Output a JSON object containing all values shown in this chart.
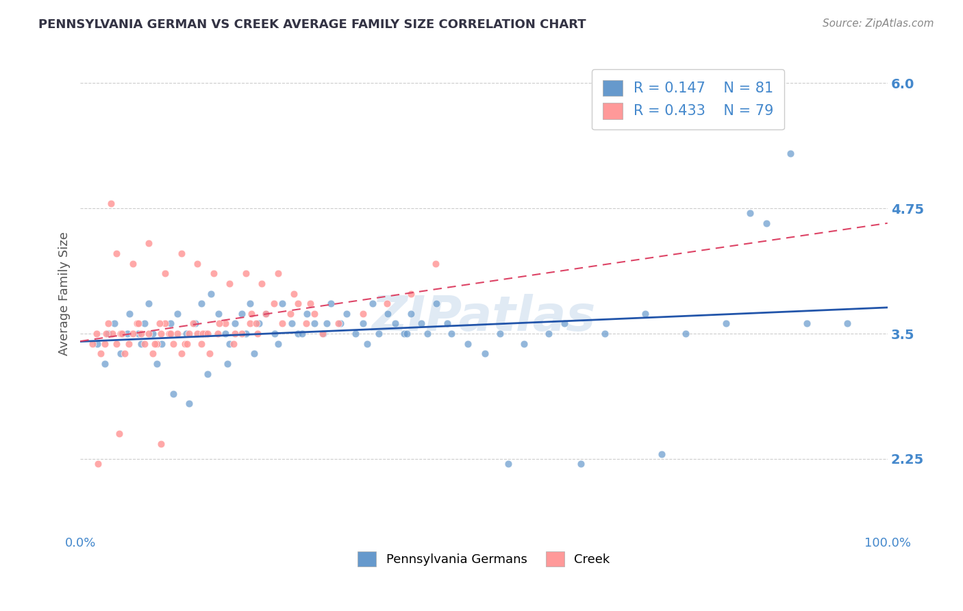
{
  "title": "PENNSYLVANIA GERMAN VS CREEK AVERAGE FAMILY SIZE CORRELATION CHART",
  "source_text": "Source: ZipAtlas.com",
  "xlabel": "",
  "ylabel": "Average Family Size",
  "xmin": 0.0,
  "xmax": 100.0,
  "ymin": 1.5,
  "ymax": 6.3,
  "yticks": [
    2.25,
    3.5,
    4.75,
    6.0
  ],
  "xticks": [
    0.0,
    100.0
  ],
  "xticklabels": [
    "0.0%",
    "100.0%"
  ],
  "blue_color": "#6699cc",
  "pink_color": "#ff9999",
  "blue_line_color": "#2255aa",
  "pink_line_color": "#dd4466",
  "grid_color": "#cccccc",
  "title_color": "#333333",
  "axis_label_color": "#4488cc",
  "watermark_color": "#ccddee",
  "legend_R1": "0.147",
  "legend_N1": "81",
  "legend_R2": "0.433",
  "legend_N2": "79",
  "blue_scatter_x": [
    2.1,
    3.5,
    4.2,
    5.8,
    6.1,
    7.2,
    8.0,
    8.5,
    9.0,
    10.1,
    11.2,
    12.0,
    13.1,
    14.2,
    15.0,
    15.5,
    16.2,
    17.1,
    18.0,
    18.5,
    19.2,
    20.0,
    20.5,
    21.0,
    22.1,
    23.0,
    24.1,
    25.0,
    26.2,
    27.0,
    28.1,
    29.0,
    30.1,
    31.0,
    32.2,
    33.0,
    34.1,
    35.0,
    36.2,
    37.0,
    38.1,
    39.0,
    40.1,
    41.0,
    42.2,
    43.0,
    44.1,
    46.0,
    48.0,
    50.1,
    52.0,
    55.0,
    58.0,
    60.0,
    65.0,
    70.0,
    75.0,
    80.0,
    85.0,
    90.0,
    3.0,
    5.0,
    7.5,
    9.5,
    11.5,
    13.5,
    15.8,
    18.2,
    21.5,
    24.5,
    27.5,
    30.5,
    35.5,
    40.5,
    45.5,
    53.0,
    62.0,
    72.0,
    83.0,
    88.0,
    95.0
  ],
  "blue_scatter_y": [
    3.4,
    3.5,
    3.6,
    3.5,
    3.7,
    3.5,
    3.6,
    3.8,
    3.5,
    3.4,
    3.6,
    3.7,
    3.5,
    3.6,
    3.8,
    3.5,
    3.9,
    3.7,
    3.5,
    3.4,
    3.6,
    3.7,
    3.5,
    3.8,
    3.6,
    3.7,
    3.5,
    3.8,
    3.6,
    3.5,
    3.7,
    3.6,
    3.5,
    3.8,
    3.6,
    3.7,
    3.5,
    3.6,
    3.8,
    3.5,
    3.7,
    3.6,
    3.5,
    3.7,
    3.6,
    3.5,
    3.8,
    3.5,
    3.4,
    3.3,
    3.5,
    3.4,
    3.5,
    3.6,
    3.5,
    3.7,
    3.5,
    3.6,
    4.6,
    3.6,
    3.2,
    3.3,
    3.4,
    3.2,
    2.9,
    2.8,
    3.1,
    3.2,
    3.3,
    3.4,
    3.5,
    3.6,
    3.4,
    3.5,
    3.6,
    2.2,
    2.2,
    2.3,
    4.7,
    5.3,
    3.6
  ],
  "pink_scatter_x": [
    1.5,
    2.0,
    2.5,
    3.0,
    3.5,
    4.0,
    4.5,
    5.0,
    5.5,
    6.0,
    6.5,
    7.0,
    7.5,
    8.0,
    8.5,
    9.0,
    9.5,
    10.0,
    10.5,
    11.0,
    11.5,
    12.0,
    12.5,
    13.0,
    13.5,
    14.0,
    14.5,
    15.0,
    15.5,
    16.0,
    17.0,
    18.0,
    19.0,
    20.0,
    21.0,
    22.0,
    23.0,
    24.0,
    25.0,
    26.0,
    27.0,
    28.0,
    29.0,
    30.0,
    32.0,
    35.0,
    38.0,
    41.0,
    44.0,
    3.2,
    5.2,
    7.2,
    9.2,
    11.2,
    13.2,
    15.2,
    17.2,
    19.2,
    21.2,
    4.5,
    6.5,
    8.5,
    10.5,
    12.5,
    14.5,
    16.5,
    18.5,
    20.5,
    22.5,
    24.5,
    26.5,
    28.5,
    3.8,
    9.8,
    15.8,
    21.8,
    2.2,
    4.8,
    10.0
  ],
  "pink_scatter_y": [
    3.4,
    3.5,
    3.3,
    3.4,
    3.6,
    3.5,
    3.4,
    3.5,
    3.3,
    3.4,
    3.5,
    3.6,
    3.5,
    3.4,
    3.5,
    3.3,
    3.4,
    3.5,
    3.6,
    3.5,
    3.4,
    3.5,
    3.3,
    3.4,
    3.5,
    3.6,
    3.5,
    3.4,
    3.5,
    3.3,
    3.5,
    3.6,
    3.4,
    3.5,
    3.6,
    3.5,
    3.7,
    3.8,
    3.6,
    3.7,
    3.8,
    3.6,
    3.7,
    3.5,
    3.6,
    3.7,
    3.8,
    3.9,
    4.2,
    3.5,
    3.5,
    3.6,
    3.4,
    3.5,
    3.4,
    3.5,
    3.6,
    3.5,
    3.7,
    4.3,
    4.2,
    4.4,
    4.1,
    4.3,
    4.2,
    4.1,
    4.0,
    4.1,
    4.0,
    4.1,
    3.9,
    3.8,
    4.8,
    3.6,
    3.5,
    3.6,
    2.2,
    2.5,
    2.4
  ]
}
